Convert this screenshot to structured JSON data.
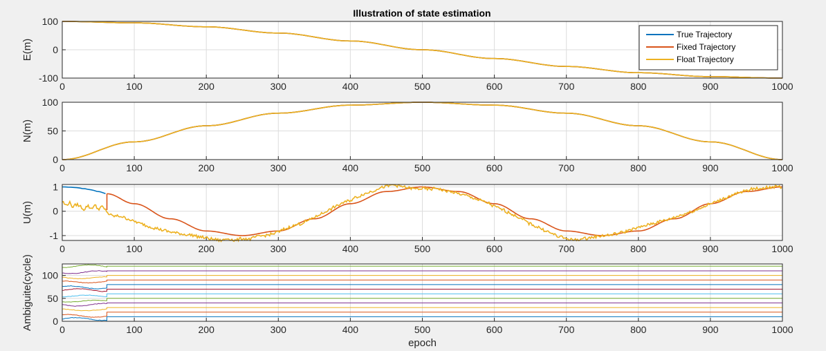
{
  "figure": {
    "title": "Illustration of state estimation",
    "background": "#f0f0f0"
  },
  "chart_data": [
    {
      "type": "line",
      "ylabel": "E(m)",
      "xlim": [
        0,
        1000
      ],
      "ylim": [
        -100,
        100
      ],
      "xticks": [
        "0",
        "100",
        "200",
        "300",
        "400",
        "500",
        "600",
        "700",
        "800",
        "900",
        "1000"
      ],
      "yticks": [
        "-100",
        "0",
        "100"
      ],
      "grid": true,
      "legend": {
        "location": "top-right",
        "entries": [
          {
            "label": "True Trajectory",
            "color": "#0072bd"
          },
          {
            "label": "Fixed Trajectory",
            "color": "#d95319"
          },
          {
            "label": "Float Trajectory",
            "color": "#edb120"
          }
        ]
      },
      "series": [
        {
          "name": "True Trajectory",
          "color": "#0072bd",
          "x": [
            0,
            100,
            200,
            300,
            400,
            500,
            600,
            700,
            800,
            900,
            1000
          ],
          "y": [
            100,
            95,
            81,
            59,
            31,
            0,
            -31,
            -59,
            -81,
            -95,
            -100
          ]
        },
        {
          "name": "Fixed Trajectory",
          "color": "#d95319",
          "x": [
            0,
            100,
            200,
            300,
            400,
            500,
            600,
            700,
            800,
            900,
            1000
          ],
          "y": [
            100,
            95,
            81,
            59,
            31,
            0,
            -31,
            -59,
            -81,
            -95,
            -100
          ]
        },
        {
          "name": "Float Trajectory",
          "color": "#edb120",
          "x": [
            0,
            100,
            200,
            300,
            400,
            500,
            600,
            700,
            800,
            900,
            1000
          ],
          "y": [
            100,
            95,
            81,
            59,
            31,
            0,
            -31,
            -59,
            -81,
            -95,
            -100
          ]
        }
      ]
    },
    {
      "type": "line",
      "ylabel": "N(m)",
      "xlim": [
        0,
        1000
      ],
      "ylim": [
        0,
        100
      ],
      "xticks": [
        "0",
        "100",
        "200",
        "300",
        "400",
        "500",
        "600",
        "700",
        "800",
        "900",
        "1000"
      ],
      "yticks": [
        "0",
        "50",
        "100"
      ],
      "grid": true,
      "series": [
        {
          "name": "True Trajectory",
          "color": "#0072bd",
          "x": [
            0,
            100,
            200,
            300,
            400,
            500,
            600,
            700,
            800,
            900,
            1000
          ],
          "y": [
            0,
            31,
            59,
            81,
            95,
            100,
            95,
            81,
            59,
            31,
            0
          ]
        },
        {
          "name": "Fixed Trajectory",
          "color": "#d95319",
          "x": [
            0,
            100,
            200,
            300,
            400,
            500,
            600,
            700,
            800,
            900,
            1000
          ],
          "y": [
            0,
            31,
            59,
            81,
            95,
            100,
            95,
            81,
            59,
            31,
            0
          ]
        },
        {
          "name": "Float Trajectory",
          "color": "#edb120",
          "x": [
            0,
            100,
            200,
            300,
            400,
            500,
            600,
            700,
            800,
            900,
            1000
          ],
          "y": [
            0,
            31,
            59,
            81,
            95,
            100,
            95,
            81,
            59,
            31,
            0
          ]
        }
      ]
    },
    {
      "type": "line",
      "ylabel": "U(m)",
      "xlim": [
        0,
        1000
      ],
      "ylim": [
        -1.2,
        1.1
      ],
      "xticks": [
        "0",
        "100",
        "200",
        "300",
        "400",
        "500",
        "600",
        "700",
        "800",
        "900",
        "1000"
      ],
      "yticks": [
        "-1",
        "0",
        "1"
      ],
      "grid": true,
      "series": [
        {
          "name": "True Trajectory",
          "color": "#0072bd",
          "x": [
            0,
            10,
            20,
            30,
            40,
            50,
            62
          ],
          "y": [
            1.0,
            0.99,
            0.97,
            0.93,
            0.88,
            0.81,
            0.72
          ]
        },
        {
          "name": "Fixed Trajectory",
          "color": "#d95319",
          "x": [
            62,
            62,
            100,
            150,
            200,
            250,
            300,
            350,
            400,
            450,
            500,
            550,
            600,
            650,
            700,
            750,
            800,
            850,
            900,
            950,
            1000
          ],
          "y": [
            0.0,
            0.72,
            0.31,
            -0.31,
            -0.81,
            -1.0,
            -0.81,
            -0.31,
            0.31,
            0.81,
            1.0,
            0.81,
            0.31,
            -0.31,
            -0.81,
            -1.0,
            -0.81,
            -0.31,
            0.31,
            0.81,
            1.0
          ]
        },
        {
          "name": "Float Trajectory",
          "color": "#edb120",
          "x": [
            0,
            5,
            10,
            15,
            20,
            25,
            30,
            35,
            40,
            45,
            50,
            55,
            60,
            65,
            70,
            80,
            90,
            100,
            110,
            120,
            130,
            140,
            150,
            160,
            170,
            180,
            190,
            200,
            210,
            220,
            230,
            240,
            250,
            260,
            270,
            280,
            290,
            300,
            310,
            320,
            330,
            340,
            350,
            360,
            370,
            380,
            390,
            400,
            410,
            420,
            430,
            440,
            450,
            460,
            470,
            480,
            490,
            500,
            510,
            520,
            530,
            540,
            550,
            560,
            570,
            580,
            590,
            600,
            610,
            620,
            630,
            640,
            650,
            660,
            670,
            680,
            690,
            700,
            710,
            720,
            730,
            740,
            750,
            760,
            770,
            780,
            790,
            800,
            810,
            820,
            830,
            840,
            850,
            860,
            870,
            880,
            890,
            900,
            910,
            920,
            930,
            940,
            950,
            960,
            970,
            980,
            990,
            1000
          ],
          "y": [
            0.4,
            0.25,
            0.35,
            0.18,
            0.28,
            0.2,
            0.08,
            0.22,
            0.12,
            0.24,
            0.1,
            0.18,
            0.05,
            -0.12,
            -0.2,
            -0.2,
            -0.3,
            -0.42,
            -0.52,
            -0.62,
            -0.7,
            -0.78,
            -0.85,
            -0.9,
            -0.95,
            -0.98,
            -1.05,
            -1.1,
            -1.15,
            -1.2,
            -1.12,
            -1.2,
            -1.12,
            -1.15,
            -1.05,
            -1.0,
            -0.95,
            -0.85,
            -0.72,
            -0.6,
            -0.52,
            -0.4,
            -0.25,
            -0.1,
            0.05,
            0.2,
            0.35,
            0.45,
            0.6,
            0.72,
            0.82,
            0.95,
            1.02,
            1.08,
            1.02,
            0.96,
            0.92,
            0.93,
            0.9,
            0.95,
            0.85,
            0.8,
            0.72,
            0.65,
            0.55,
            0.45,
            0.35,
            0.2,
            0.08,
            -0.05,
            -0.2,
            -0.35,
            -0.52,
            -0.65,
            -0.78,
            -0.92,
            -1.05,
            -1.12,
            -1.18,
            -1.15,
            -1.1,
            -1.05,
            -1.0,
            -0.98,
            -0.92,
            -0.85,
            -0.75,
            -0.68,
            -0.58,
            -0.5,
            -0.42,
            -0.35,
            -0.25,
            -0.15,
            -0.05,
            0.05,
            0.18,
            0.3,
            0.42,
            0.55,
            0.65,
            0.75,
            0.85,
            0.92,
            0.95,
            0.98,
            1.0,
            1.0
          ]
        }
      ]
    },
    {
      "type": "line",
      "ylabel": "Ambiguite(cycle)",
      "xlabel": "epoch",
      "xlim": [
        0,
        1000
      ],
      "ylim": [
        0,
        125
      ],
      "xticks": [
        "0",
        "100",
        "200",
        "300",
        "400",
        "500",
        "600",
        "700",
        "800",
        "900",
        "1000"
      ],
      "yticks": [
        "0",
        "50",
        "100"
      ],
      "grid": true,
      "fix_epoch": 62,
      "series": [
        {
          "name": "",
          "color": "#0072bd",
          "true_value": 10,
          "float_offset": -5,
          "wiggle": 3
        },
        {
          "name": "",
          "color": "#d95319",
          "true_value": 20,
          "float_offset": -8,
          "wiggle": 3
        },
        {
          "name": "",
          "color": "#edb120",
          "true_value": 30,
          "float_offset": -5,
          "wiggle": 2
        },
        {
          "name": "",
          "color": "#7e2f8e",
          "true_value": 40,
          "float_offset": -4,
          "wiggle": 3
        },
        {
          "name": "",
          "color": "#77ac30",
          "true_value": 50,
          "float_offset": -6,
          "wiggle": 2
        },
        {
          "name": "",
          "color": "#4dbeee",
          "true_value": 60,
          "float_offset": -5,
          "wiggle": 2
        },
        {
          "name": "",
          "color": "#a2142f",
          "true_value": 70,
          "float_offset": -2,
          "wiggle": 3
        },
        {
          "name": "",
          "color": "#0072bd",
          "true_value": 80,
          "float_offset": -6,
          "wiggle": 3
        },
        {
          "name": "",
          "color": "#d95319",
          "true_value": 90,
          "float_offset": -4,
          "wiggle": 2
        },
        {
          "name": "",
          "color": "#edb120",
          "true_value": 100,
          "float_offset": -5,
          "wiggle": 2
        },
        {
          "name": "",
          "color": "#7e2f8e",
          "true_value": 110,
          "float_offset": -3,
          "wiggle": 3
        },
        {
          "name": "",
          "color": "#77ac30",
          "true_value": 120,
          "float_offset": 0,
          "wiggle": 3
        }
      ]
    }
  ]
}
